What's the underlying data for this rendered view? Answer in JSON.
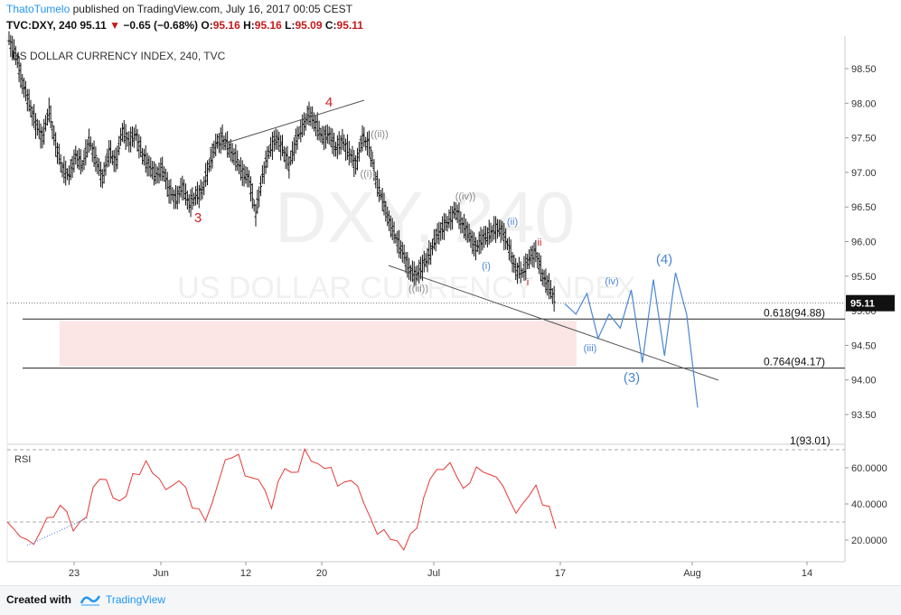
{
  "header": {
    "author": "ThatoTumelo",
    "published": "published on TradingView.com, July 16, 2017 00:05 CEST",
    "symbol": "TVC:DXY, 240",
    "last": "95.11",
    "change": "−0.65 (−0.68%)",
    "o_label": "O:",
    "o": "95.16",
    "h_label": "H:",
    "h": "95.16",
    "l_label": "L:",
    "l": "95.09",
    "c_label": "C:",
    "c": "95.11"
  },
  "chart_data": {
    "type": "candlestick",
    "title": "US DOLLAR CURRENCY INDEX, 240, TVC",
    "watermark_main": "DXY, 240",
    "watermark_sub": "US DOLLAR CURRENCY INDEX",
    "x_ticks": [
      "23",
      "Jun",
      "12",
      "20",
      "Jul",
      "17",
      "Aug",
      "14"
    ],
    "y_ticks": [
      "98.50",
      "98.00",
      "97.50",
      "97.00",
      "96.50",
      "96.00",
      "95.50",
      "95.00",
      "94.50",
      "94.00",
      "93.50"
    ],
    "ylim": [
      93.3,
      99.0
    ],
    "last_price_label": "95.11",
    "price_path": [
      [
        0,
        98.9
      ],
      [
        1,
        98.7
      ],
      [
        2,
        98.3
      ],
      [
        3,
        98.0
      ],
      [
        4,
        97.7
      ],
      [
        5,
        97.5
      ],
      [
        6,
        97.9
      ],
      [
        7,
        97.4
      ],
      [
        8,
        97.05
      ],
      [
        9,
        96.95
      ],
      [
        10,
        97.25
      ],
      [
        11,
        97.1
      ],
      [
        12,
        97.45
      ],
      [
        13,
        97.2
      ],
      [
        14,
        96.9
      ],
      [
        15,
        97.3
      ],
      [
        16,
        97.15
      ],
      [
        17,
        97.6
      ],
      [
        18,
        97.45
      ],
      [
        19,
        97.55
      ],
      [
        20,
        97.25
      ],
      [
        21,
        97.1
      ],
      [
        22,
        96.95
      ],
      [
        23,
        97.05
      ],
      [
        24,
        96.75
      ],
      [
        25,
        96.6
      ],
      [
        26,
        96.8
      ],
      [
        27,
        96.55
      ],
      [
        28,
        96.65
      ],
      [
        29,
        96.75
      ],
      [
        30,
        97.1
      ],
      [
        31,
        97.4
      ],
      [
        32,
        97.5
      ],
      [
        33,
        97.35
      ],
      [
        34,
        97.2
      ],
      [
        35,
        97.0
      ],
      [
        36,
        96.9
      ],
      [
        37,
        96.4
      ],
      [
        38,
        96.95
      ],
      [
        39,
        97.3
      ],
      [
        40,
        97.5
      ],
      [
        41,
        97.35
      ],
      [
        42,
        97.1
      ],
      [
        43,
        97.45
      ],
      [
        44,
        97.65
      ],
      [
        45,
        97.85
      ],
      [
        46,
        97.7
      ],
      [
        47,
        97.5
      ],
      [
        48,
        97.55
      ],
      [
        49,
        97.35
      ],
      [
        50,
        97.45
      ],
      [
        51,
        97.3
      ],
      [
        52,
        97.1
      ],
      [
        53,
        97.5
      ],
      [
        54,
        97.4
      ],
      [
        55,
        96.9
      ],
      [
        56,
        96.6
      ],
      [
        57,
        96.3
      ],
      [
        58,
        96.05
      ],
      [
        59,
        95.85
      ],
      [
        60,
        95.6
      ],
      [
        61,
        95.5
      ],
      [
        62,
        95.65
      ],
      [
        63,
        95.8
      ],
      [
        64,
        96.05
      ],
      [
        65,
        96.2
      ],
      [
        66,
        96.3
      ],
      [
        67,
        96.45
      ],
      [
        68,
        96.25
      ],
      [
        69,
        96.1
      ],
      [
        70,
        95.9
      ],
      [
        71,
        96.05
      ],
      [
        72,
        96.1
      ],
      [
        73,
        96.2
      ],
      [
        74,
        96.15
      ],
      [
        75,
        95.9
      ],
      [
        76,
        95.6
      ],
      [
        77,
        95.55
      ],
      [
        78,
        95.75
      ],
      [
        79,
        95.85
      ],
      [
        80,
        95.5
      ],
      [
        81,
        95.35
      ],
      [
        82,
        95.11
      ]
    ],
    "forecast_path": [
      [
        0,
        95.1
      ],
      [
        1,
        94.95
      ],
      [
        2,
        95.25
      ],
      [
        3,
        94.6
      ],
      [
        4,
        94.95
      ],
      [
        5,
        94.75
      ],
      [
        6,
        95.3
      ],
      [
        7,
        94.25
      ],
      [
        8,
        95.45
      ],
      [
        9,
        94.35
      ],
      [
        10,
        95.55
      ],
      [
        11,
        94.95
      ],
      [
        12,
        93.6
      ]
    ],
    "fib_levels": [
      {
        "label": "0.618(94.88)",
        "value": 94.88
      },
      {
        "label": "0.764(94.17)",
        "value": 94.17
      }
    ],
    "partial_label": "1(93.01)",
    "wave_labels": [
      {
        "text": "3",
        "color": "#d62020"
      },
      {
        "text": "4",
        "color": "#d62020"
      },
      {
        "text": "((i))",
        "color": "#888888"
      },
      {
        "text": "((ii))",
        "color": "#888888"
      },
      {
        "text": "((iii))",
        "color": "#888888"
      },
      {
        "text": "((iv))",
        "color": "#888888"
      },
      {
        "text": "(i)",
        "color": "#4a86d6"
      },
      {
        "text": "(ii)",
        "color": "#4a86d6"
      },
      {
        "text": "i",
        "color": "#d62020"
      },
      {
        "text": "ii",
        "color": "#d62020"
      },
      {
        "text": "(iii)",
        "color": "#4a86d6"
      },
      {
        "text": "(iv)",
        "color": "#4a86d6"
      },
      {
        "text": "(3)",
        "color": "#4a86d6"
      },
      {
        "text": "(4)",
        "color": "#4a86d6"
      }
    ],
    "rsi": {
      "label": "RSI",
      "y_ticks": [
        "60.0000",
        "40.0000",
        "20.0000"
      ],
      "ylim": [
        12,
        72
      ],
      "bands": [
        70,
        30
      ],
      "values": [
        30,
        26,
        22,
        20,
        18,
        24,
        33,
        32,
        40,
        35,
        26,
        29,
        34,
        48,
        55,
        52,
        45,
        40,
        46,
        55,
        58,
        62,
        59,
        52,
        50,
        48,
        55,
        47,
        40,
        35,
        33,
        38,
        55,
        62,
        68,
        65,
        58,
        52,
        56,
        45,
        40,
        50,
        62,
        55,
        60,
        68,
        66,
        60,
        62,
        58,
        52,
        50,
        55,
        48,
        42,
        30,
        25,
        24,
        22,
        18,
        16,
        22,
        28,
        42,
        55,
        58,
        60,
        62,
        56,
        48,
        52,
        60,
        58,
        56,
        55,
        50,
        42,
        35,
        40,
        45,
        50,
        40,
        38,
        27
      ]
    },
    "colors": {
      "bars": "#111111",
      "forecast": "#4a86d6",
      "rsi_line": "#e53935",
      "target_zone": "#fbe5e5",
      "trendline": "#555555"
    }
  },
  "footer": {
    "created": "Created with",
    "brand": "TradingView"
  }
}
